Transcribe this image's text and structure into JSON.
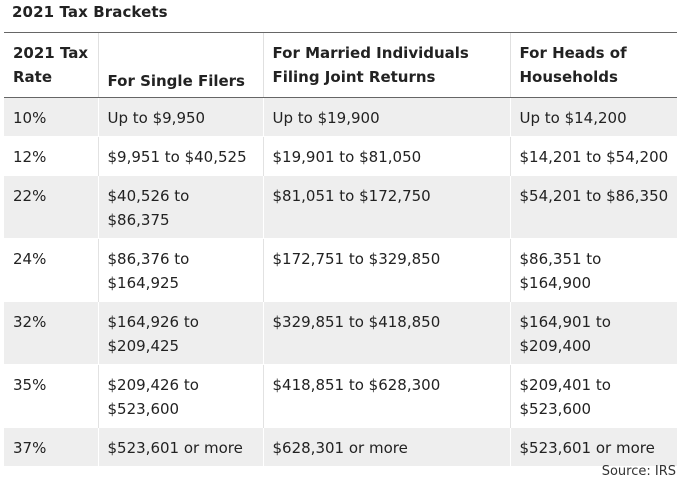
{
  "title": "2021 Tax Brackets",
  "table": {
    "headers": [
      "2021 Tax Rate",
      "For Single Filers",
      "For Married Individuals Filing Joint Returns",
      "For Heads of Households"
    ],
    "rows": [
      [
        "10%",
        "Up to $9,950",
        "Up to $19,900",
        "Up to $14,200"
      ],
      [
        "12%",
        "$9,951 to $40,525",
        "$19,901 to $81,050",
        "$14,201 to $54,200"
      ],
      [
        "22%",
        "$40,526 to $86,375",
        "$81,051 to $172,750",
        "$54,201 to $86,350"
      ],
      [
        "24%",
        "$86,376 to $164,925",
        "$172,751 to $329,850",
        "$86,351 to $164,900"
      ],
      [
        "32%",
        "$164,926 to $209,425",
        "$329,851 to $418,850",
        "$164,901 to $209,400"
      ],
      [
        "35%",
        "$209,426 to $523,600",
        "$418,851 to $628,300",
        "$209,401 to $523,600"
      ],
      [
        "37%",
        "$523,601 or more",
        "$628,301 or more",
        "$523,601 or more"
      ]
    ]
  },
  "source": "Source: IRS"
}
